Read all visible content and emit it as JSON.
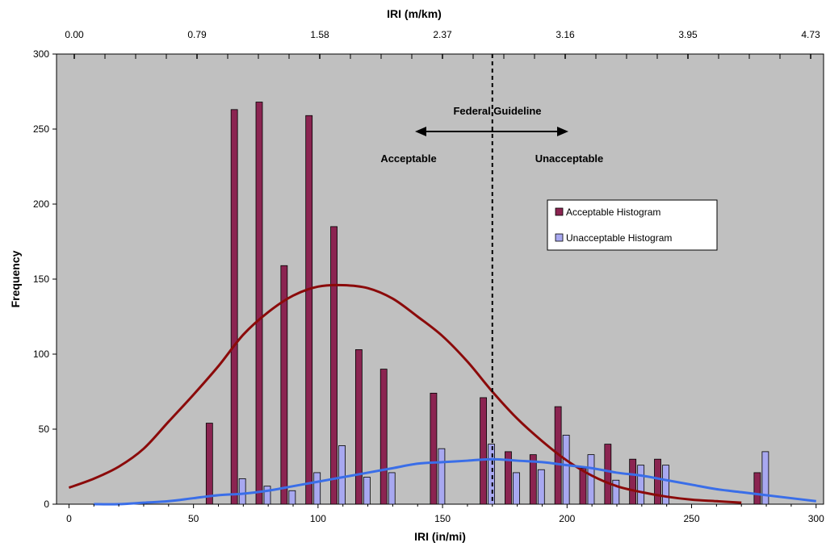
{
  "chart_data": {
    "type": "bar",
    "xlabel": "IRI (in/mi)",
    "ylabel": "Frequency",
    "top_axis_label": "IRI (m/km)",
    "x_ticks": [
      "0",
      "50",
      "100",
      "150",
      "200",
      "250",
      "300"
    ],
    "x_tick_values": [
      0,
      50,
      100,
      150,
      200,
      250,
      300
    ],
    "top_ticks": [
      "0.00",
      "0.79",
      "1.58",
      "2.37",
      "3.16",
      "3.95",
      "4.73"
    ],
    "top_tick_values": [
      0,
      50,
      100,
      150,
      200,
      250,
      300
    ],
    "y_ticks": [
      "0",
      "50",
      "100",
      "150",
      "200",
      "250",
      "300"
    ],
    "y_tick_values": [
      0,
      50,
      100,
      150,
      200,
      250,
      300
    ],
    "xlim": [
      -5,
      303
    ],
    "ylim": [
      0,
      300
    ],
    "grid": false,
    "legend_position": "right",
    "series": [
      {
        "name": "Acceptable Histogram",
        "color": "#8b2451",
        "x": [
          58,
          68,
          78,
          88,
          98,
          108,
          118,
          128,
          148,
          168,
          178,
          188,
          198,
          208,
          218,
          228,
          238,
          278
        ],
        "values": [
          54,
          263,
          268,
          159,
          259,
          185,
          103,
          90,
          74,
          71,
          35,
          33,
          65,
          24,
          40,
          30,
          30,
          21
        ]
      },
      {
        "name": "Unacceptable Histogram",
        "color": "#a8a8f0",
        "x": [
          58,
          68,
          78,
          88,
          98,
          108,
          118,
          128,
          148,
          168,
          178,
          188,
          198,
          208,
          218,
          228,
          238,
          278
        ],
        "values": [
          0,
          17,
          12,
          9,
          21,
          39,
          18,
          21,
          37,
          40,
          21,
          23,
          46,
          33,
          16,
          26,
          26,
          35
        ]
      }
    ],
    "curves": [
      {
        "color": "#8b0a0a",
        "x": [
          0,
          10,
          20,
          30,
          40,
          50,
          60,
          70,
          80,
          90,
          100,
          110,
          120,
          130,
          140,
          150,
          160,
          170,
          180,
          190,
          200,
          210,
          220,
          230,
          240,
          250,
          260,
          270
        ],
        "y": [
          11,
          17,
          25,
          37,
          55,
          73,
          92,
          113,
          128,
          139,
          145,
          146,
          144,
          137,
          125,
          112,
          95,
          75,
          57,
          42,
          29,
          19,
          12,
          8,
          5,
          3,
          2,
          1
        ]
      },
      {
        "color": "#3a6ee8",
        "x": [
          10,
          20,
          30,
          40,
          50,
          60,
          70,
          80,
          90,
          100,
          110,
          120,
          130,
          140,
          150,
          160,
          170,
          180,
          190,
          200,
          210,
          220,
          230,
          240,
          250,
          260,
          270,
          280,
          290,
          300
        ],
        "y": [
          0,
          0,
          1,
          2,
          4,
          6,
          7,
          9,
          12,
          15,
          18,
          21,
          24,
          27,
          28,
          29,
          30,
          29,
          28,
          26,
          24,
          21,
          19,
          16,
          13,
          10,
          8,
          6,
          4,
          2
        ]
      }
    ],
    "guideline": {
      "x": 170,
      "label": "Federal Guideline",
      "left_label": "Acceptable",
      "right_label": "Unacceptable"
    }
  },
  "colors": {
    "plot_background": "#c0c0c0",
    "axis": "#000000"
  }
}
